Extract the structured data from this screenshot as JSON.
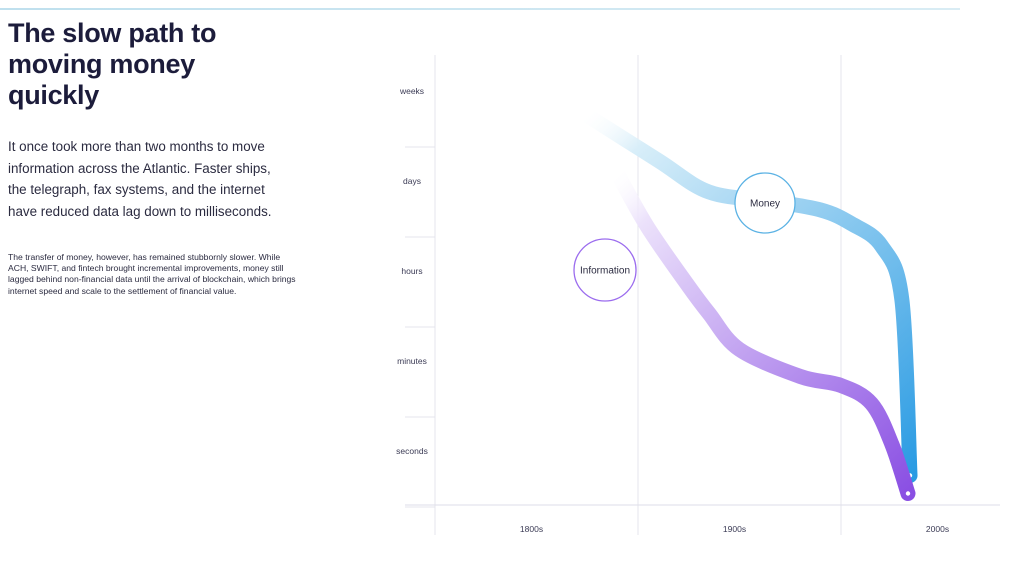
{
  "title": "The slow path to moving money quickly",
  "intro": "It once took more than two months to move information across the Atlantic. Faster ships, the telegraph, fax systems, and the internet have reduced data lag down to milliseconds.",
  "body": "The transfer of money, however, has remained stubbornly slower. While ACH, SWIFT, and fintech brought incremental improvements, money still lagged behind non-financial data until the arrival of blockchain, which brings internet speed and scale to the settlement of financial value.",
  "chart_data": {
    "type": "line",
    "x_categories": [
      "1800s",
      "1900s",
      "2000s"
    ],
    "y_categories": [
      "weeks",
      "days",
      "hours",
      "minutes",
      "seconds"
    ],
    "grid": true,
    "series": [
      {
        "name": "Money",
        "color": "#2a9be3",
        "start_color": "#d8eef9",
        "points": [
          [
            1.75,
            0.15
          ],
          [
            2.1,
            0.65
          ],
          [
            2.35,
            1.0
          ],
          [
            2.65,
            1.1
          ],
          [
            2.9,
            1.2
          ],
          [
            3.05,
            1.35
          ],
          [
            3.2,
            1.6
          ],
          [
            3.3,
            2.2
          ],
          [
            3.34,
            4.15
          ]
        ]
      },
      {
        "name": "Information",
        "color": "#8a4fe3",
        "start_color": "#ece2fb",
        "points": [
          [
            1.9,
            0.8
          ],
          [
            2.05,
            1.4
          ],
          [
            2.25,
            2.05
          ],
          [
            2.35,
            2.35
          ],
          [
            2.5,
            2.75
          ],
          [
            2.8,
            3.05
          ],
          [
            3.0,
            3.15
          ],
          [
            3.15,
            3.35
          ],
          [
            3.25,
            3.8
          ],
          [
            3.33,
            4.35
          ]
        ]
      }
    ]
  }
}
